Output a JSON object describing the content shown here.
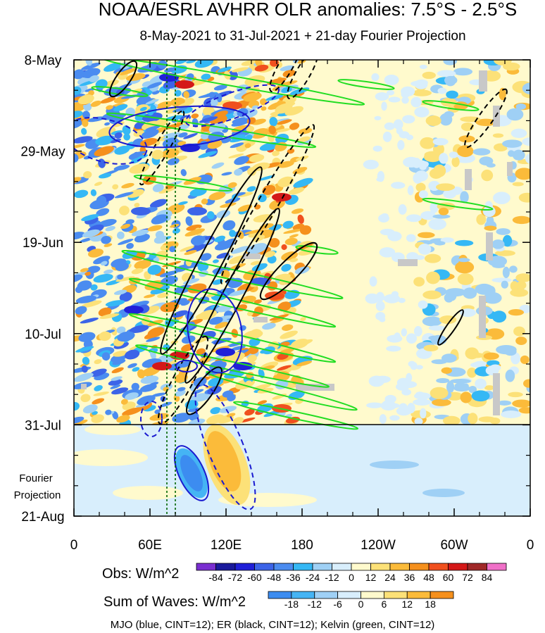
{
  "chart_data": {
    "type": "heatmap",
    "title": "NOAA/ESRL AVHRR OLR anomalies: 7.5°S - 2.5°S",
    "subtitle": "8-May-2021 to 31-Jul-2021 + 21-day Fourier Projection",
    "y_axis": {
      "tick_labels": [
        "8-May",
        "29-May",
        "19-Jun",
        "10-Jul",
        "31-Jul",
        "21-Aug"
      ],
      "reversed": true,
      "projection_label_line1": "Fourier",
      "projection_label_line2": "Projection"
    },
    "x_axis": {
      "tick_labels": [
        "0",
        "60E",
        "120E",
        "180",
        "120W",
        "60W",
        "0"
      ],
      "range_deg_east": [
        0,
        360
      ]
    },
    "obs_colorbar": {
      "label": "Obs: W/m^2",
      "levels": [
        "-84",
        "-72",
        "-60",
        "-48",
        "-36",
        "-24",
        "-12",
        "0",
        "12",
        "24",
        "36",
        "48",
        "60",
        "72",
        "84"
      ],
      "colors": [
        "#7a2ed0",
        "#1a1a9c",
        "#2020d8",
        "#3c64e8",
        "#4b8cf0",
        "#35b8f5",
        "#9fd0f5",
        "#d8eefc",
        "#fffacd",
        "#fce178",
        "#fbbb3a",
        "#f5901d",
        "#f0501e",
        "#d41818",
        "#a02828",
        "#f070c8"
      ]
    },
    "waves_colorbar": {
      "label": "Sum of Waves: W/m^2",
      "levels": [
        "-18",
        "-12",
        "-6",
        "0",
        "6",
        "12",
        "18"
      ],
      "colors": [
        "#3c8cf0",
        "#45b4f4",
        "#9fd0f5",
        "#d8eefc",
        "#fffacd",
        "#fce178",
        "#fbbb3a",
        "#f5901d"
      ]
    },
    "contour_legend": "MJO (blue, CINT=12); ER (black, CINT=12); Kelvin (green, CINT=12)",
    "series": [
      {
        "name": "MJO",
        "color": "#1a1ad0"
      },
      {
        "name": "ER",
        "color": "#000000"
      },
      {
        "name": "Kelvin",
        "color": "#22dd22"
      }
    ],
    "grid": false
  }
}
